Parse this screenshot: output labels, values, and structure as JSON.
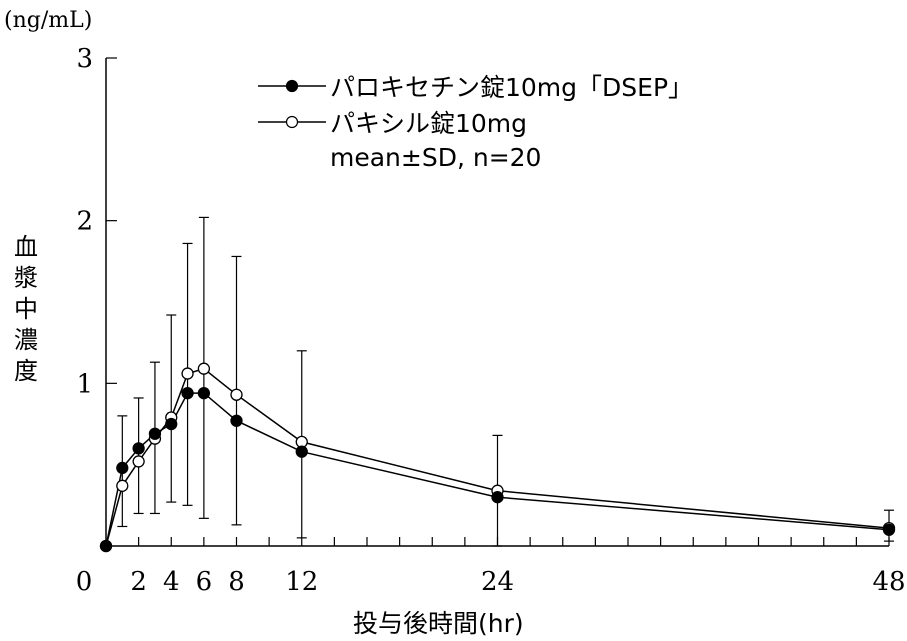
{
  "chart_data": {
    "type": "line",
    "unit_label": "(ng/mL)",
    "ylabel": "血漿中濃度",
    "xlabel": "投与後時間(hr)",
    "xlim": [
      0,
      48
    ],
    "ylim": [
      0,
      3
    ],
    "xticks": [
      0,
      2,
      4,
      6,
      8,
      12,
      24,
      48
    ],
    "yticks": [
      1,
      2,
      3
    ],
    "legend_note": "mean±SD, n=20",
    "colors": {
      "line": "#000000",
      "filled_marker": "#000000",
      "open_marker": "#ffffff"
    },
    "series": [
      {
        "name": "パロキセチン錠10mg「DSEP」",
        "marker": "filled-circle",
        "x": [
          0,
          1,
          2,
          3,
          4,
          5,
          6,
          8,
          12,
          24,
          48
        ],
        "y": [
          0,
          0.48,
          0.6,
          0.69,
          0.75,
          0.94,
          0.94,
          0.77,
          0.58,
          0.3,
          0.1
        ]
      },
      {
        "name": "パキシル錠10mg",
        "marker": "open-circle",
        "x": [
          0,
          1,
          2,
          3,
          4,
          5,
          6,
          8,
          12,
          24,
          48
        ],
        "y": [
          0,
          0.37,
          0.52,
          0.66,
          0.79,
          1.06,
          1.09,
          0.93,
          0.64,
          0.34,
          0.11
        ]
      }
    ],
    "error_bars": [
      {
        "x": 1,
        "low": 0.12,
        "high": 0.8
      },
      {
        "x": 2,
        "low": 0.2,
        "high": 0.91
      },
      {
        "x": 3,
        "low": 0.2,
        "high": 1.13
      },
      {
        "x": 4,
        "low": 0.27,
        "high": 1.42
      },
      {
        "x": 5,
        "low": 0.25,
        "high": 1.86
      },
      {
        "x": 6,
        "low": 0.17,
        "high": 2.02
      },
      {
        "x": 8,
        "low": 0.13,
        "high": 1.78
      },
      {
        "x": 12,
        "low": 0.05,
        "high": 1.2
      },
      {
        "x": 24,
        "low": 0.0,
        "high": 0.68
      },
      {
        "x": 48,
        "low": 0.03,
        "high": 0.22
      }
    ]
  }
}
